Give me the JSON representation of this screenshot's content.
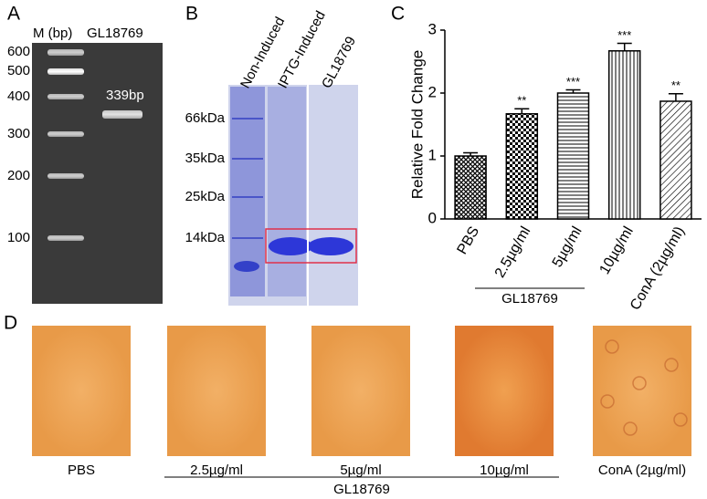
{
  "panel_a": {
    "label": "A",
    "lane_header": "M (bp)",
    "sample": "GL18769",
    "ladder": [
      "600",
      "500",
      "400",
      "300",
      "200",
      "100"
    ],
    "band_label": "339bp"
  },
  "panel_b": {
    "label": "B",
    "lanes": [
      "Non-Induced",
      "IPTG-Induced",
      "GL18769"
    ],
    "markers": [
      "66kDa",
      "35kDa",
      "25kDa",
      "14kDa"
    ]
  },
  "panel_c": {
    "label": "C"
  },
  "chart_data": {
    "type": "bar",
    "y_label": "Relative Fold Change",
    "categories": [
      "PBS",
      "2.5µg/ml",
      "5µg/ml",
      "10µg/ml",
      "ConA (2µg/ml)"
    ],
    "values": [
      1.0,
      1.67,
      2.0,
      2.67,
      1.87
    ],
    "errors": [
      0.05,
      0.08,
      0.05,
      0.12,
      0.12
    ],
    "significance": [
      null,
      "**",
      "***",
      "***",
      "**"
    ],
    "group_label": "GL18769",
    "ylim": [
      0,
      3
    ],
    "yticks": [
      0,
      1,
      2,
      3
    ]
  },
  "panel_d": {
    "label": "D",
    "captions": [
      "PBS",
      "2.5µg/ml",
      "5µg/ml",
      "10µg/ml",
      "ConA (2µg/ml)"
    ],
    "group_label": "GL18769"
  }
}
